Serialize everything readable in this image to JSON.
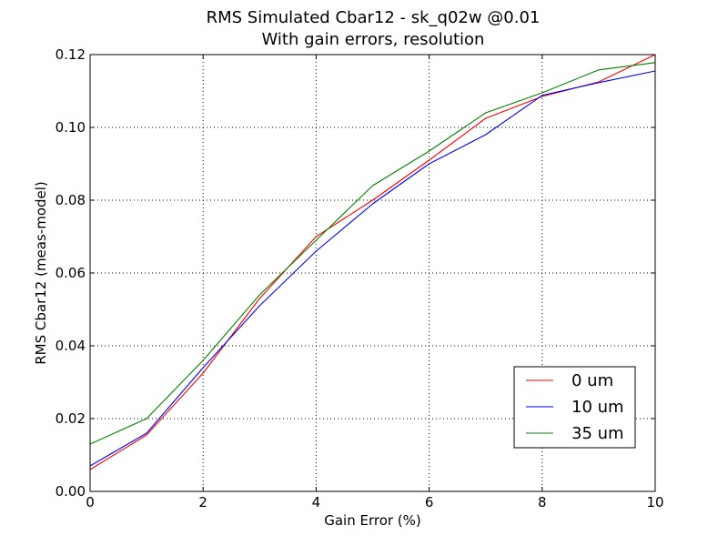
{
  "chart_data": {
    "type": "line",
    "title": "RMS Simulated Cbar12 - sk_q02w @0.01",
    "subtitle": "With gain errors, resolution",
    "xlabel": "Gain Error (%)",
    "ylabel": "RMS Cbar12 (meas-model)",
    "xlim": [
      0,
      10
    ],
    "ylim": [
      0,
      0.12
    ],
    "xticks": [
      0,
      2,
      4,
      6,
      8,
      10
    ],
    "xtick_labels": [
      "0",
      "2",
      "4",
      "6",
      "8",
      "10"
    ],
    "yticks": [
      0,
      0.02,
      0.04,
      0.06,
      0.08,
      0.1,
      0.12
    ],
    "ytick_labels": [
      "0.00",
      "0.02",
      "0.04",
      "0.06",
      "0.08",
      "0.10",
      "0.12"
    ],
    "grid": true,
    "legend_position": "lower-right",
    "x": [
      0,
      1,
      2,
      3,
      4,
      5,
      6,
      7,
      8,
      9,
      10
    ],
    "series": [
      {
        "name": "0 um",
        "color": "#ff0000",
        "values": [
          0.006,
          0.0155,
          0.0325,
          0.053,
          0.07,
          0.08,
          0.091,
          0.1025,
          0.1085,
          0.1125,
          0.12
        ]
      },
      {
        "name": "10 um",
        "color": "#0000ff",
        "values": [
          0.007,
          0.016,
          0.034,
          0.051,
          0.066,
          0.079,
          0.09,
          0.098,
          0.1088,
          0.1123,
          0.1155
        ]
      },
      {
        "name": "35 um",
        "color": "#008000",
        "values": [
          0.013,
          0.02,
          0.036,
          0.054,
          0.069,
          0.084,
          0.0935,
          0.104,
          0.1095,
          0.1158,
          0.1178
        ]
      }
    ]
  }
}
